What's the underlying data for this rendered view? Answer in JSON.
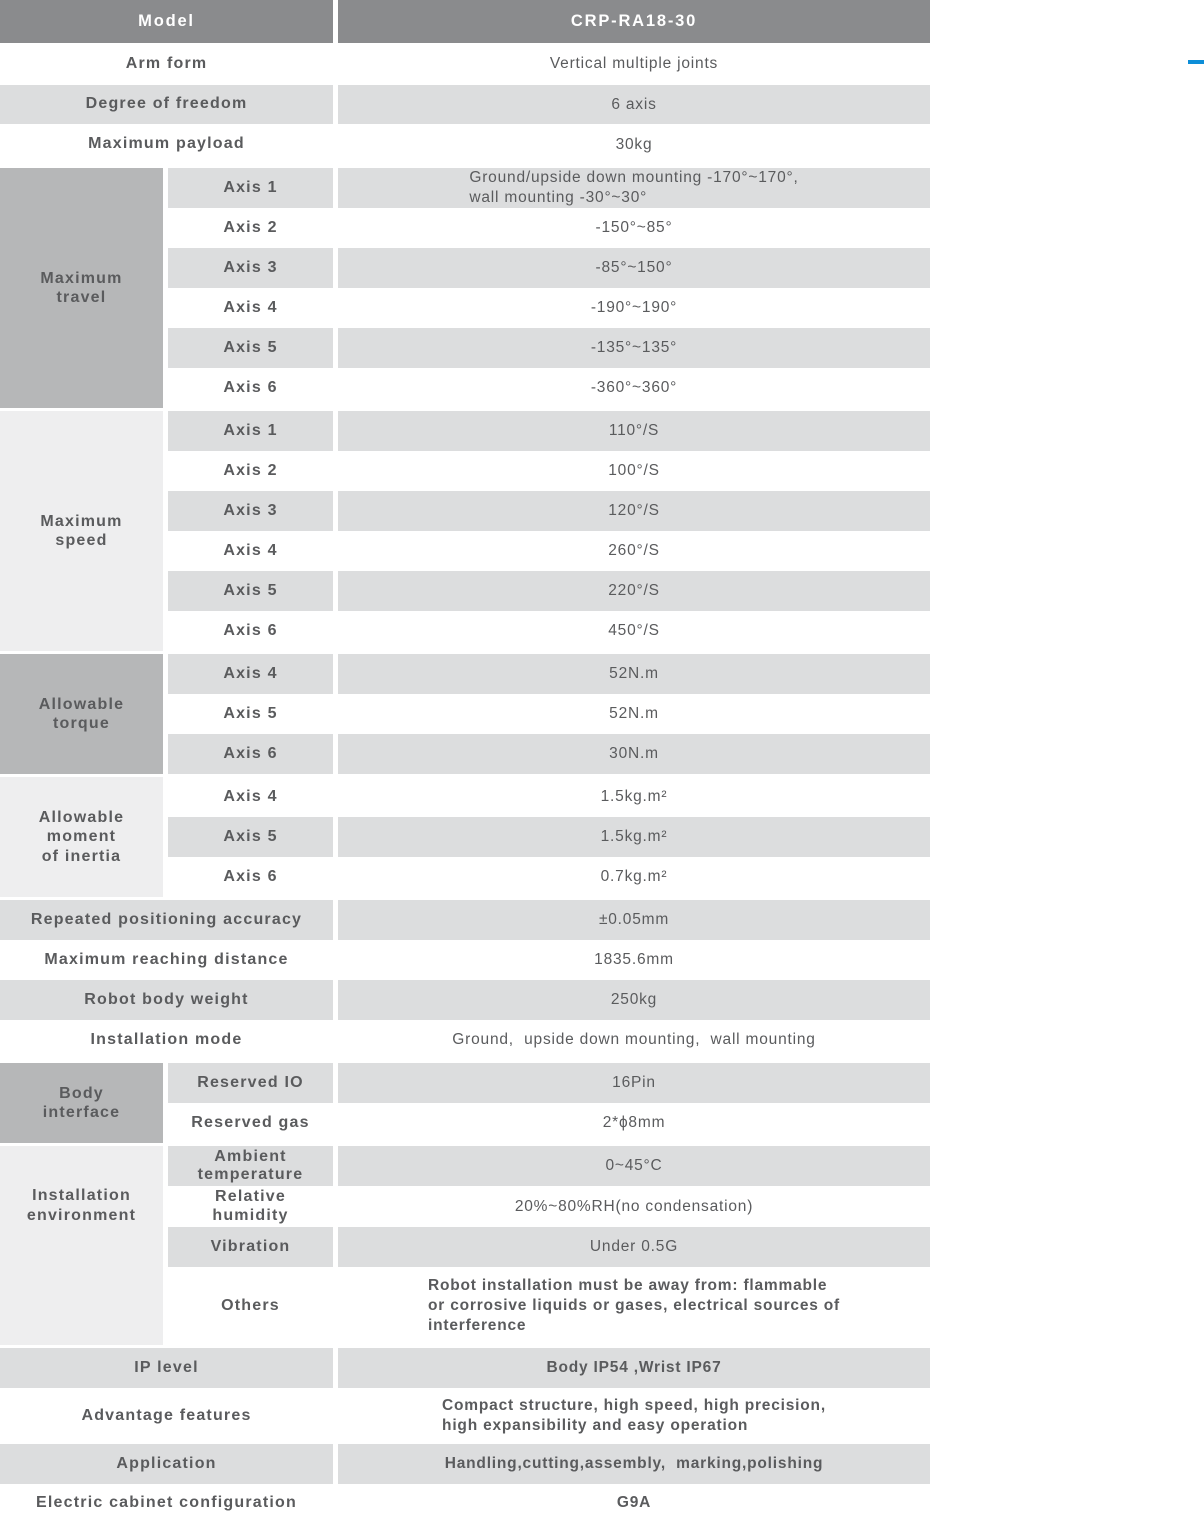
{
  "colors": {
    "accent_blue": "#0d8ed8",
    "header_bg": "#8a8b8d",
    "group_bg_medium": "#b6b7b8",
    "group_bg_light": "#eeeeef",
    "stripe_bg": "#dcddde",
    "text": "#5a5b5d"
  },
  "header": {
    "label": "Model",
    "value": "CRP-RA18-30"
  },
  "top_rows": [
    {
      "label": "Arm form",
      "value": "Vertical multiple joints"
    },
    {
      "label": "Degree of freedom",
      "value": "6 axis"
    },
    {
      "label": "Maximum payload",
      "value": "30kg"
    }
  ],
  "max_travel": {
    "title": "Maximum\ntravel",
    "rows": [
      {
        "label": "Axis 1",
        "value": "Ground/upside down mounting -170°~170°,\nwall mounting -30°~30°"
      },
      {
        "label": "Axis 2",
        "value": "-150°~85°"
      },
      {
        "label": "Axis 3",
        "value": "-85°~150°"
      },
      {
        "label": "Axis 4",
        "value": "-190°~190°"
      },
      {
        "label": "Axis 5",
        "value": "-135°~135°"
      },
      {
        "label": "Axis 6",
        "value": "-360°~360°"
      }
    ]
  },
  "max_speed": {
    "title": "Maximum\nspeed",
    "rows": [
      {
        "label": "Axis 1",
        "value": "110°/S"
      },
      {
        "label": "Axis 2",
        "value": "100°/S"
      },
      {
        "label": "Axis 3",
        "value": "120°/S"
      },
      {
        "label": "Axis 4",
        "value": "260°/S"
      },
      {
        "label": "Axis 5",
        "value": "220°/S"
      },
      {
        "label": "Axis 6",
        "value": "450°/S"
      }
    ]
  },
  "torque": {
    "title": "Allowable\ntorque",
    "rows": [
      {
        "label": "Axis 4",
        "value": "52N.m"
      },
      {
        "label": "Axis 5",
        "value": "52N.m"
      },
      {
        "label": "Axis 6",
        "value": "30N.m"
      }
    ]
  },
  "inertia": {
    "title": "Allowable\nmoment\nof inertia",
    "rows": [
      {
        "label": "Axis 4",
        "value": "1.5kg.m²"
      },
      {
        "label": "Axis 5",
        "value": "1.5kg.m²"
      },
      {
        "label": "Axis 6",
        "value": "0.7kg.m²"
      }
    ]
  },
  "mid_rows": [
    {
      "label": "Repeated positioning accuracy",
      "value": "±0.05mm"
    },
    {
      "label": "Maximum reaching distance",
      "value": "1835.6mm"
    },
    {
      "label": "Robot body weight",
      "value": "250kg"
    },
    {
      "label": "Installation mode",
      "value": "Ground,  upside down mounting,  wall mounting"
    }
  ],
  "body_interface": {
    "title": "Body\ninterface",
    "rows": [
      {
        "label": "Reserved IO",
        "value": "16Pin"
      },
      {
        "label": "Reserved gas",
        "value": "2*ϕ8mm"
      }
    ]
  },
  "install_env": {
    "title": "Installation\nenvironment",
    "rows": [
      {
        "label": "Ambient\ntemperature",
        "value": "0~45°C"
      },
      {
        "label": "Relative\nhumidity",
        "value": "20%~80%RH(no condensation)"
      },
      {
        "label": "Vibration",
        "value": "Under 0.5G"
      },
      {
        "label": "Others",
        "value": "Robot installation must be away from: flammable\nor corrosive liquids or gases, electrical sources of\ninterference"
      }
    ]
  },
  "bottom_rows": [
    {
      "label": "IP level",
      "value": "Body IP54 ,Wrist IP67"
    },
    {
      "label": "Advantage features",
      "value": "Compact structure, high speed, high precision,\nhigh expansibility and easy operation"
    },
    {
      "label": "Application",
      "value": "Handling,cutting,assembly,  marking,polishing"
    },
    {
      "label": "Electric cabinet configuration",
      "value": "G9A"
    }
  ]
}
